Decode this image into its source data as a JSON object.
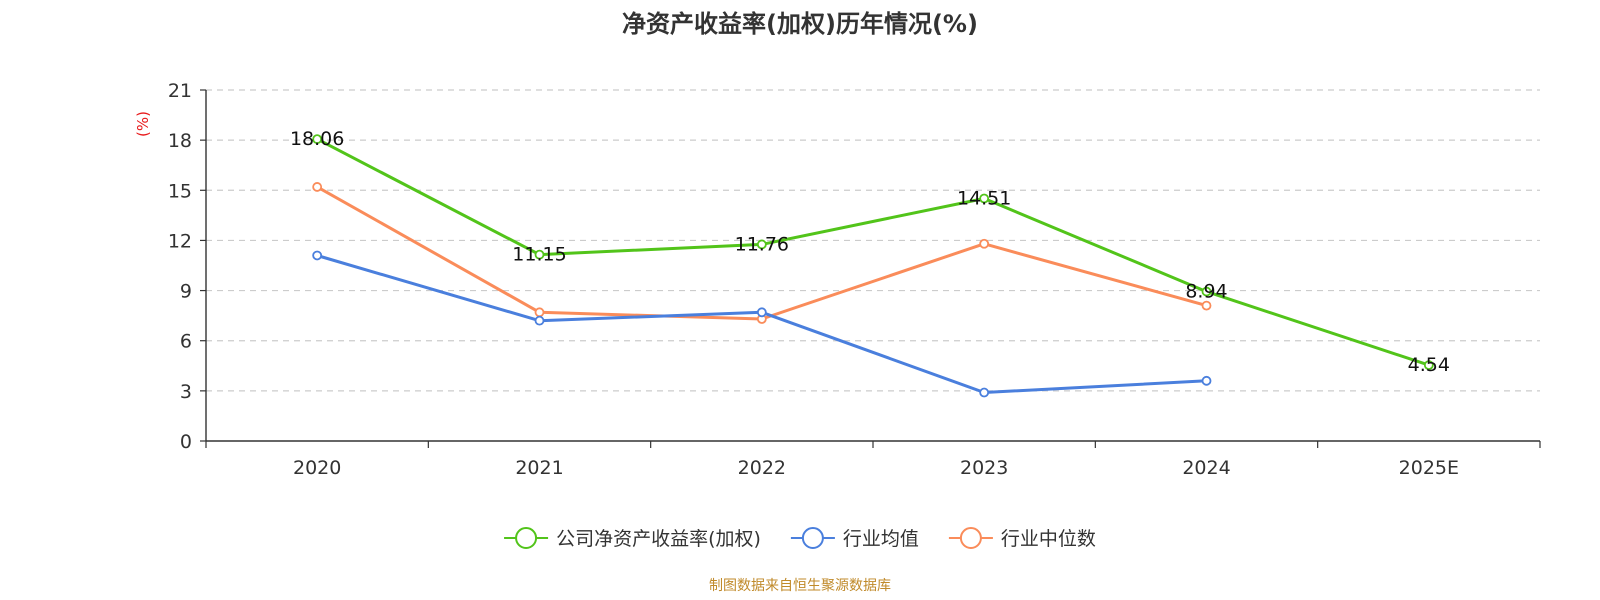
{
  "chart_data": {
    "type": "line",
    "title": "净资产收益率(加权)历年情况(%)",
    "ylabel": "(%)",
    "xlabel": "",
    "ylim": [
      0,
      21
    ],
    "yticks": [
      0,
      3,
      6,
      9,
      12,
      15,
      18,
      21
    ],
    "categories": [
      "2020",
      "2021",
      "2022",
      "2023",
      "2024",
      "2025E"
    ],
    "grid": true,
    "legend_position": "bottom",
    "series": [
      {
        "name": "公司净资产收益率(加权)",
        "color": "#52c41a",
        "values": [
          18.06,
          11.15,
          11.76,
          14.51,
          8.94,
          4.54
        ],
        "show_labels": true
      },
      {
        "name": "行业均值",
        "color": "#4a7fdd",
        "values": [
          11.1,
          7.2,
          7.7,
          2.9,
          3.6,
          null
        ],
        "show_labels": false
      },
      {
        "name": "行业中位数",
        "color": "#fa8c5a",
        "values": [
          15.2,
          7.7,
          7.3,
          11.8,
          8.1,
          null
        ],
        "show_labels": false
      }
    ],
    "source": "制图数据来自恒生聚源数据库"
  }
}
